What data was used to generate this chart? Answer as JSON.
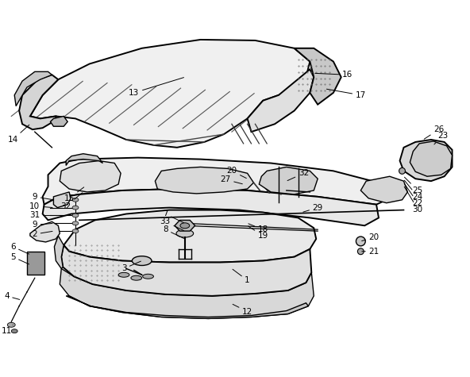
{
  "background_color": "#ffffff",
  "line_color": "#000000",
  "text_color": "#000000",
  "font_size": 7.5,
  "figsize": [
    5.92,
    4.75
  ],
  "dpi": 100,
  "seat_color": "#f2f2f2",
  "seat_side_color": "#d8d8d8",
  "frame_color": "#ebebeb",
  "tank_color": "#e5e5e5",
  "dark_shade": "#c0c0c0",
  "stipple_color": "#888888"
}
